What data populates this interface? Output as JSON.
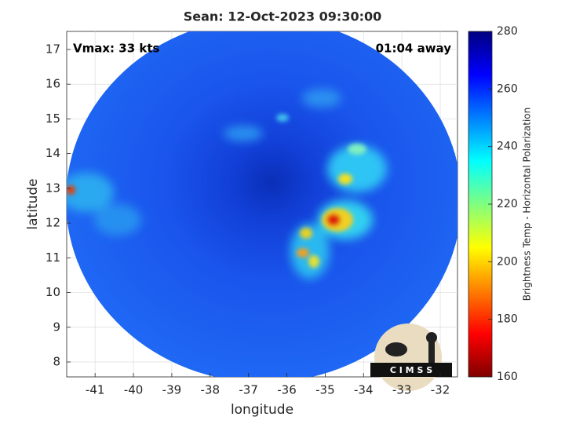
{
  "chart_data": {
    "type": "heatmap",
    "title": "Sean: 12-Oct-2023 09:30:00",
    "annotations": [
      "Vmax: 33 kts",
      "01:04 away"
    ],
    "xlabel": "longitude",
    "ylabel": "latitude",
    "xlim": [
      -41.74,
      -31.55
    ],
    "xticks": [
      -41,
      -40,
      -39,
      -38,
      -37,
      -36,
      -35,
      -34,
      -33,
      -32
    ],
    "ylim": [
      7.57,
      17.52
    ],
    "yticks": [
      8,
      9,
      10,
      11,
      12,
      13,
      14,
      15,
      16,
      17
    ],
    "grid": true,
    "colorbar": {
      "label": "Brightness Temp - Horizontal Polarization",
      "lim": [
        160,
        280
      ],
      "ticks": [
        160,
        180,
        200,
        220,
        240,
        260,
        280
      ]
    },
    "logo": "C I M S S"
  }
}
